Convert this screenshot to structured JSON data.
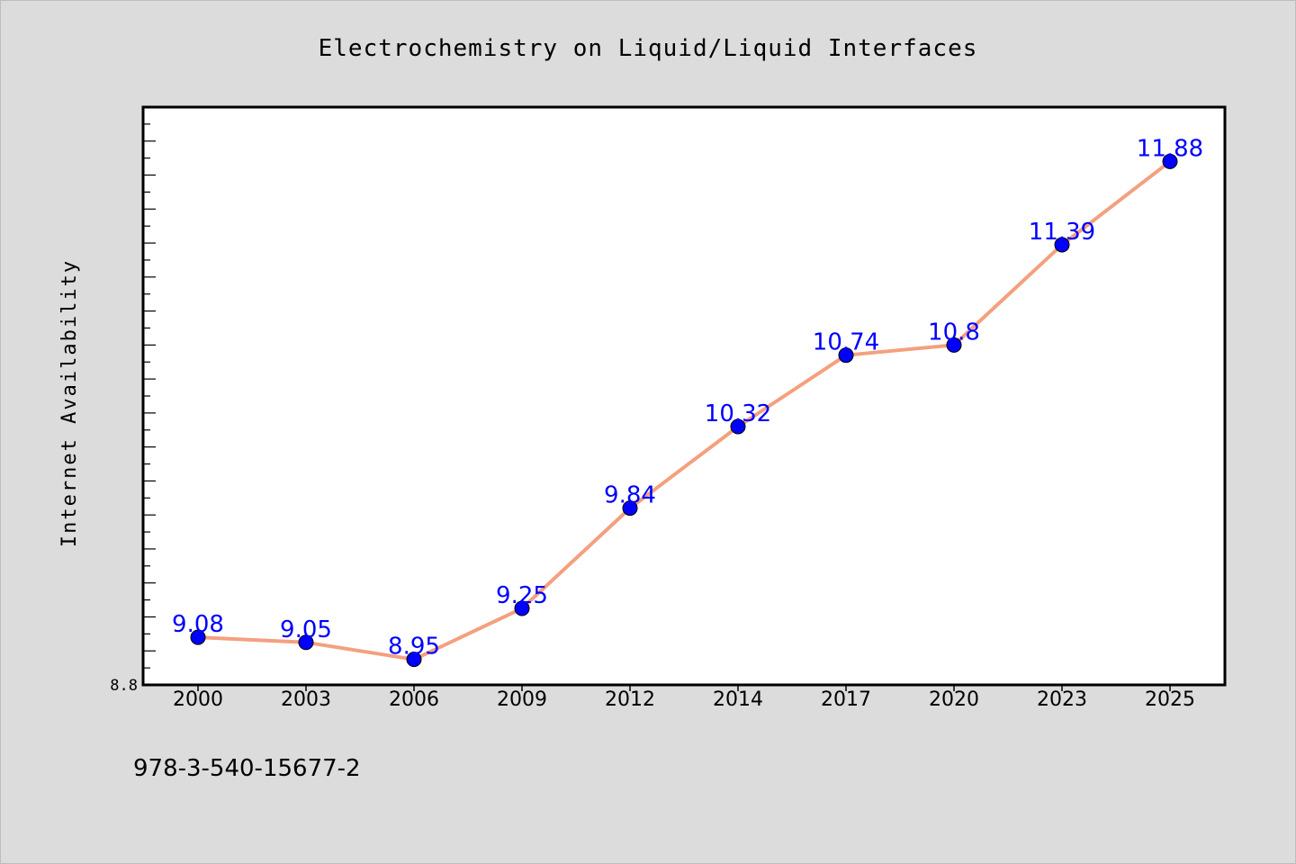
{
  "chart_data": {
    "type": "line",
    "title": "Electrochemistry on Liquid/Liquid Interfaces",
    "xlabel": "",
    "ylabel": "Internet Availability",
    "categories": [
      "2000",
      "2003",
      "2006",
      "2009",
      "2012",
      "2014",
      "2017",
      "2020",
      "2023",
      "2025"
    ],
    "series": [
      {
        "values": [
          9.08,
          9.05,
          8.95,
          9.25,
          9.84,
          10.32,
          10.74,
          10.8,
          11.39,
          11.88
        ]
      }
    ],
    "data_labels": [
      "9.08",
      "9.05",
      "8.95",
      "9.25",
      "9.84",
      "10.32",
      "10.74",
      "10.8",
      "11.39",
      "11.88"
    ],
    "ylim": [
      8.8,
      12.2
    ],
    "yticks": [
      "8.8"
    ],
    "grid": false,
    "line_color": "#f4a07f",
    "marker_color": "#0000ff",
    "label_color": "#0000ff"
  },
  "footer_text": "978-3-540-15677-2"
}
